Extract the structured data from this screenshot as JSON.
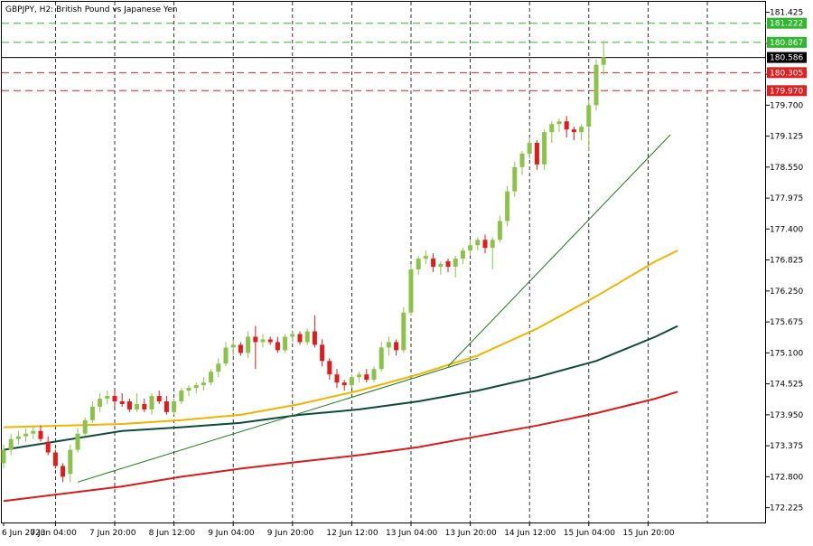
{
  "window": {
    "title": "GBPJPY, H2:  British Pound vs Japanese Yen"
  },
  "colors": {
    "bull": "#8bc34a",
    "bear": "#e31a1c",
    "ma_fast": "#f0b400",
    "ma_mid": "#0e4a3a",
    "ma_slow": "#d81b1b",
    "trendline": "#1b7a1b",
    "tp_line": "#2eb82e",
    "sl_line": "#e02020",
    "price_line": "#000000",
    "grid": "#000000",
    "axis_text": "#000000"
  },
  "chart_data": {
    "type": "candlestick",
    "title": "GBPJPY, H2:  British Pound vs Japanese Yen",
    "ylim": [
      171.95,
      181.62
    ],
    "y_ticks": [
      "181.425",
      "180.850",
      "180.275",
      "179.700",
      "179.125",
      "178.550",
      "177.975",
      "177.400",
      "176.825",
      "176.250",
      "175.675",
      "175.100",
      "174.525",
      "173.950",
      "173.375",
      "172.800",
      "172.225"
    ],
    "x_labels": [
      {
        "label": "6 Jun 2023",
        "bar": 0
      },
      {
        "label": "7 Jun 04:00",
        "bar": 7
      },
      {
        "label": "7 Jun 20:00",
        "bar": 15
      },
      {
        "label": "8 Jun 12:00",
        "bar": 23
      },
      {
        "label": "9 Jun 04:00",
        "bar": 31
      },
      {
        "label": "9 Jun 20:00",
        "bar": 39
      },
      {
        "label": "12 Jun 12:00",
        "bar": 47
      },
      {
        "label": "13 Jun 04:00",
        "bar": 55
      },
      {
        "label": "13 Jun 20:00",
        "bar": 63
      },
      {
        "label": "14 Jun 12:00",
        "bar": 71
      },
      {
        "label": "15 Jun 04:00",
        "bar": 79
      },
      {
        "label": "15 Jun 20:00",
        "bar": 87
      }
    ],
    "vertical_grid_bars": [
      7,
      15,
      23,
      31,
      39,
      47,
      55,
      63,
      71,
      79,
      87,
      95
    ],
    "candles": [
      {
        "o": 173.05,
        "h": 173.4,
        "l": 172.95,
        "c": 173.3
      },
      {
        "o": 173.3,
        "h": 173.6,
        "l": 173.2,
        "c": 173.5
      },
      {
        "o": 173.5,
        "h": 173.65,
        "l": 173.4,
        "c": 173.55
      },
      {
        "o": 173.55,
        "h": 173.7,
        "l": 173.45,
        "c": 173.6
      },
      {
        "o": 173.6,
        "h": 173.75,
        "l": 173.5,
        "c": 173.65
      },
      {
        "o": 173.65,
        "h": 173.75,
        "l": 173.45,
        "c": 173.5
      },
      {
        "o": 173.45,
        "h": 173.55,
        "l": 173.2,
        "c": 173.25
      },
      {
        "o": 173.25,
        "h": 173.3,
        "l": 172.95,
        "c": 173.0
      },
      {
        "o": 173.0,
        "h": 173.05,
        "l": 172.7,
        "c": 172.8
      },
      {
        "o": 172.85,
        "h": 173.4,
        "l": 172.7,
        "c": 173.3
      },
      {
        "o": 173.3,
        "h": 173.7,
        "l": 173.25,
        "c": 173.6
      },
      {
        "o": 173.6,
        "h": 173.9,
        "l": 173.55,
        "c": 173.85
      },
      {
        "o": 173.85,
        "h": 174.2,
        "l": 173.8,
        "c": 174.1
      },
      {
        "o": 174.1,
        "h": 174.35,
        "l": 174.0,
        "c": 174.25
      },
      {
        "o": 174.25,
        "h": 174.4,
        "l": 174.15,
        "c": 174.3
      },
      {
        "o": 174.3,
        "h": 174.4,
        "l": 174.1,
        "c": 174.2
      },
      {
        "o": 174.2,
        "h": 174.35,
        "l": 174.1,
        "c": 174.15
      },
      {
        "o": 174.2,
        "h": 174.25,
        "l": 174.0,
        "c": 174.05
      },
      {
        "o": 174.05,
        "h": 174.35,
        "l": 174.0,
        "c": 174.15
      },
      {
        "o": 174.15,
        "h": 174.25,
        "l": 174.0,
        "c": 174.05
      },
      {
        "o": 174.05,
        "h": 174.35,
        "l": 173.95,
        "c": 174.3
      },
      {
        "o": 174.3,
        "h": 174.4,
        "l": 174.15,
        "c": 174.2
      },
      {
        "o": 174.2,
        "h": 174.3,
        "l": 173.95,
        "c": 174.0
      },
      {
        "o": 174.0,
        "h": 174.25,
        "l": 173.95,
        "c": 174.2
      },
      {
        "o": 174.2,
        "h": 174.45,
        "l": 174.15,
        "c": 174.4
      },
      {
        "o": 174.4,
        "h": 174.5,
        "l": 174.3,
        "c": 174.45
      },
      {
        "o": 174.45,
        "h": 174.55,
        "l": 174.35,
        "c": 174.5
      },
      {
        "o": 174.5,
        "h": 174.65,
        "l": 174.4,
        "c": 174.55
      },
      {
        "o": 174.55,
        "h": 174.8,
        "l": 174.5,
        "c": 174.75
      },
      {
        "o": 174.75,
        "h": 175.0,
        "l": 174.65,
        "c": 174.9
      },
      {
        "o": 174.9,
        "h": 175.3,
        "l": 174.85,
        "c": 175.2
      },
      {
        "o": 175.2,
        "h": 175.35,
        "l": 175.05,
        "c": 175.25
      },
      {
        "o": 175.25,
        "h": 175.3,
        "l": 175.05,
        "c": 175.1
      },
      {
        "o": 175.1,
        "h": 175.5,
        "l": 175.0,
        "c": 175.4
      },
      {
        "o": 175.4,
        "h": 175.6,
        "l": 174.8,
        "c": 175.3
      },
      {
        "o": 175.3,
        "h": 175.45,
        "l": 175.2,
        "c": 175.35
      },
      {
        "o": 175.35,
        "h": 175.4,
        "l": 175.25,
        "c": 175.3
      },
      {
        "o": 175.3,
        "h": 175.4,
        "l": 175.1,
        "c": 175.15
      },
      {
        "o": 175.15,
        "h": 175.45,
        "l": 175.1,
        "c": 175.4
      },
      {
        "o": 175.4,
        "h": 175.5,
        "l": 175.3,
        "c": 175.45
      },
      {
        "o": 175.45,
        "h": 175.5,
        "l": 175.25,
        "c": 175.3
      },
      {
        "o": 175.3,
        "h": 175.55,
        "l": 175.25,
        "c": 175.5
      },
      {
        "o": 175.5,
        "h": 175.8,
        "l": 175.2,
        "c": 175.25
      },
      {
        "o": 175.25,
        "h": 175.35,
        "l": 174.85,
        "c": 174.95
      },
      {
        "o": 174.95,
        "h": 175.0,
        "l": 174.6,
        "c": 174.7
      },
      {
        "o": 174.7,
        "h": 174.8,
        "l": 174.45,
        "c": 174.55
      },
      {
        "o": 174.55,
        "h": 174.6,
        "l": 174.4,
        "c": 174.5
      },
      {
        "o": 174.5,
        "h": 174.7,
        "l": 174.45,
        "c": 174.65
      },
      {
        "o": 174.65,
        "h": 174.75,
        "l": 174.55,
        "c": 174.7
      },
      {
        "o": 174.7,
        "h": 174.8,
        "l": 174.55,
        "c": 174.6
      },
      {
        "o": 174.6,
        "h": 174.85,
        "l": 174.55,
        "c": 174.8
      },
      {
        "o": 174.8,
        "h": 175.3,
        "l": 174.75,
        "c": 175.2
      },
      {
        "o": 175.2,
        "h": 175.4,
        "l": 175.05,
        "c": 175.3
      },
      {
        "o": 175.3,
        "h": 175.35,
        "l": 175.05,
        "c": 175.15
      },
      {
        "o": 175.15,
        "h": 175.95,
        "l": 175.1,
        "c": 175.85
      },
      {
        "o": 175.85,
        "h": 176.75,
        "l": 175.8,
        "c": 176.65
      },
      {
        "o": 176.65,
        "h": 176.9,
        "l": 176.55,
        "c": 176.85
      },
      {
        "o": 176.85,
        "h": 177.0,
        "l": 176.75,
        "c": 176.9
      },
      {
        "o": 176.85,
        "h": 176.95,
        "l": 176.6,
        "c": 176.7
      },
      {
        "o": 176.7,
        "h": 176.8,
        "l": 176.55,
        "c": 176.75
      },
      {
        "o": 176.8,
        "h": 176.85,
        "l": 176.6,
        "c": 176.7
      },
      {
        "o": 176.7,
        "h": 176.9,
        "l": 176.5,
        "c": 176.85
      },
      {
        "o": 176.85,
        "h": 177.05,
        "l": 176.75,
        "c": 177.0
      },
      {
        "o": 177.0,
        "h": 177.2,
        "l": 176.9,
        "c": 177.1
      },
      {
        "o": 177.1,
        "h": 177.25,
        "l": 177.0,
        "c": 177.2
      },
      {
        "o": 177.2,
        "h": 177.3,
        "l": 176.95,
        "c": 177.05
      },
      {
        "o": 177.05,
        "h": 177.25,
        "l": 176.65,
        "c": 177.2
      },
      {
        "o": 177.2,
        "h": 177.65,
        "l": 177.15,
        "c": 177.55
      },
      {
        "o": 177.55,
        "h": 178.2,
        "l": 177.45,
        "c": 178.1
      },
      {
        "o": 178.1,
        "h": 178.65,
        "l": 178.0,
        "c": 178.55
      },
      {
        "o": 178.55,
        "h": 178.85,
        "l": 178.4,
        "c": 178.8
      },
      {
        "o": 178.8,
        "h": 179.1,
        "l": 178.7,
        "c": 179.0
      },
      {
        "o": 179.0,
        "h": 179.05,
        "l": 178.5,
        "c": 178.6
      },
      {
        "o": 178.6,
        "h": 179.25,
        "l": 178.5,
        "c": 179.2
      },
      {
        "o": 179.2,
        "h": 179.4,
        "l": 179.0,
        "c": 179.35
      },
      {
        "o": 179.35,
        "h": 179.45,
        "l": 179.2,
        "c": 179.4
      },
      {
        "o": 179.4,
        "h": 179.5,
        "l": 179.1,
        "c": 179.25
      },
      {
        "o": 179.25,
        "h": 179.3,
        "l": 179.05,
        "c": 179.2
      },
      {
        "o": 179.2,
        "h": 179.35,
        "l": 179.05,
        "c": 179.3
      },
      {
        "o": 179.3,
        "h": 179.8,
        "l": 178.85,
        "c": 179.7
      },
      {
        "o": 179.7,
        "h": 180.55,
        "l": 179.6,
        "c": 180.45
      },
      {
        "o": 180.45,
        "h": 180.9,
        "l": 180.25,
        "c": 180.59
      }
    ],
    "moving_averages": [
      {
        "color_key": "ma_fast",
        "points": [
          [
            0,
            173.72
          ],
          [
            16,
            173.78
          ],
          [
            24,
            173.85
          ],
          [
            32,
            173.95
          ],
          [
            40,
            174.15
          ],
          [
            48,
            174.4
          ],
          [
            56,
            174.7
          ],
          [
            64,
            175.05
          ],
          [
            72,
            175.55
          ],
          [
            80,
            176.15
          ],
          [
            88,
            176.8
          ],
          [
            91,
            177.0
          ]
        ]
      },
      {
        "color_key": "ma_mid",
        "points": [
          [
            0,
            173.3
          ],
          [
            16,
            173.65
          ],
          [
            24,
            173.72
          ],
          [
            32,
            173.8
          ],
          [
            40,
            173.95
          ],
          [
            48,
            174.05
          ],
          [
            56,
            174.2
          ],
          [
            64,
            174.4
          ],
          [
            72,
            174.65
          ],
          [
            80,
            174.95
          ],
          [
            88,
            175.4
          ],
          [
            91,
            175.6
          ]
        ]
      },
      {
        "color_key": "ma_slow",
        "points": [
          [
            0,
            172.35
          ],
          [
            16,
            172.62
          ],
          [
            24,
            172.8
          ],
          [
            32,
            172.95
          ],
          [
            40,
            173.08
          ],
          [
            48,
            173.2
          ],
          [
            56,
            173.35
          ],
          [
            64,
            173.55
          ],
          [
            72,
            173.75
          ],
          [
            80,
            173.98
          ],
          [
            88,
            174.25
          ],
          [
            91,
            174.38
          ]
        ]
      }
    ],
    "trendlines": [
      {
        "from": [
          10,
          172.7
        ],
        "to": [
          64,
          175.0
        ]
      },
      {
        "from": [
          60,
          174.85
        ],
        "to": [
          90,
          179.15
        ]
      }
    ],
    "levels": [
      {
        "price": 181.222,
        "label": "181.222",
        "kind": "tp"
      },
      {
        "price": 180.867,
        "label": "180.867",
        "kind": "tp"
      },
      {
        "price": 180.586,
        "label": "180.586",
        "kind": "price"
      },
      {
        "price": 180.305,
        "label": "180.305",
        "kind": "sl"
      },
      {
        "price": 179.97,
        "label": "179.970",
        "kind": "sl"
      }
    ]
  }
}
